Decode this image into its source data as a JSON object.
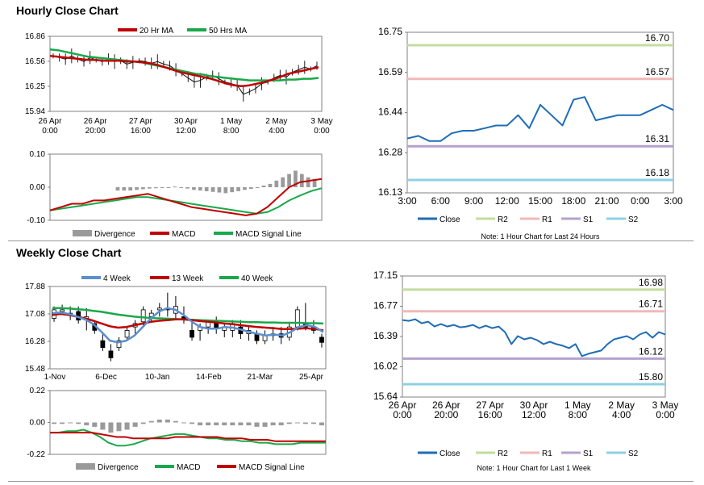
{
  "titles": {
    "hourly": "Hourly Close Chart",
    "weekly": "Weekly Close Chart"
  },
  "colors": {
    "close": "#1f6db5",
    "ma20": "#c00000",
    "ma50": "#1aa84a",
    "r2": "#c4dca0",
    "r1": "#f2b8b8",
    "s1": "#b4a2cc",
    "s2": "#8ed0e4",
    "wk4": "#5b8fd0",
    "wk13": "#c00000",
    "wk40": "#1aa84a",
    "divergence": "#9a9a9a",
    "macd_red": "#c00000",
    "macd_green": "#1aa84a",
    "candle_black": "#000000",
    "candle_white": "#ffffff"
  },
  "chart_data": [
    {
      "id": "hourly_price",
      "type": "candlestick",
      "title": "Hourly Close Chart",
      "legend": [
        "20 Hr MA",
        "50 Hrs MA"
      ],
      "yticks": [
        "16.86",
        "16.56",
        "16.25",
        "15.94"
      ],
      "ylim": [
        15.94,
        16.86
      ],
      "xticks": [
        [
          "26 Apr",
          "0:00"
        ],
        [
          "26 Apr",
          "20:00"
        ],
        [
          "27 Apr",
          "16:00"
        ],
        [
          "30 Apr",
          "12:00"
        ],
        [
          "1 May",
          "8:00"
        ],
        [
          "2 May",
          "4:00"
        ],
        [
          "3 May",
          "0:00"
        ]
      ],
      "close_path": [
        16.62,
        16.6,
        16.58,
        16.62,
        16.58,
        16.55,
        16.6,
        16.57,
        16.55,
        16.58,
        16.55,
        16.56,
        16.52,
        16.54,
        16.56,
        16.55,
        16.53,
        16.55,
        16.52,
        16.5,
        16.45,
        16.4,
        16.35,
        16.3,
        16.32,
        16.36,
        16.38,
        16.34,
        16.3,
        16.28,
        16.26,
        16.15,
        16.18,
        16.22,
        16.28,
        16.3,
        16.35,
        16.38,
        16.36,
        16.42,
        16.45,
        16.48,
        16.46,
        16.5
      ],
      "ma20_path": [
        16.62,
        16.61,
        16.6,
        16.59,
        16.58,
        16.57,
        16.57,
        16.56,
        16.56,
        16.56,
        16.55,
        16.55,
        16.54,
        16.53,
        16.51,
        16.48,
        16.45,
        16.42,
        16.4,
        16.38,
        16.36,
        16.34,
        16.31,
        16.28,
        16.26,
        16.25,
        16.26,
        16.28,
        16.3,
        16.33,
        16.36,
        16.4,
        16.42,
        16.44,
        16.46,
        16.48
      ],
      "ma50_path": [
        16.7,
        16.69,
        16.67,
        16.65,
        16.63,
        16.61,
        16.6,
        16.59,
        16.58,
        16.57,
        16.56,
        16.55,
        16.54,
        16.52,
        16.5,
        16.48,
        16.46,
        16.44,
        16.42,
        16.4,
        16.39,
        16.37,
        16.36,
        16.35,
        16.34,
        16.33,
        16.32,
        16.32,
        16.32,
        16.32,
        16.32,
        16.33,
        16.33,
        16.34,
        16.34,
        16.35
      ]
    },
    {
      "id": "hourly_macd",
      "type": "macd",
      "legend": [
        "Divergence",
        "MACD",
        "MACD Signal Line"
      ],
      "yticks": [
        "0.10",
        "0.00",
        "-0.10"
      ],
      "ylim": [
        -0.1,
        0.1
      ],
      "macd_path": [
        -0.07,
        -0.06,
        -0.05,
        -0.05,
        -0.04,
        -0.04,
        -0.035,
        -0.03,
        -0.025,
        -0.02,
        -0.03,
        -0.04,
        -0.05,
        -0.06,
        -0.065,
        -0.07,
        -0.075,
        -0.08,
        -0.085,
        -0.08,
        -0.06,
        -0.03,
        0.0,
        0.015,
        0.02,
        0.025
      ],
      "signal_path": [
        -0.07,
        -0.065,
        -0.06,
        -0.055,
        -0.05,
        -0.045,
        -0.04,
        -0.035,
        -0.03,
        -0.03,
        -0.035,
        -0.04,
        -0.045,
        -0.05,
        -0.055,
        -0.06,
        -0.065,
        -0.07,
        -0.075,
        -0.08,
        -0.075,
        -0.06,
        -0.04,
        -0.025,
        -0.012,
        -0.003
      ],
      "divergence": [
        -0.01,
        -0.01,
        -0.01,
        -0.008,
        -0.006,
        -0.004,
        -0.003,
        -0.002,
        0.0,
        0.002,
        0.0,
        -0.004,
        -0.008,
        -0.01,
        -0.012,
        -0.014,
        -0.016,
        -0.018,
        -0.015,
        -0.012,
        -0.008,
        -0.005,
        0.0,
        0.005,
        0.01,
        0.02,
        0.03,
        0.04,
        0.05,
        0.04,
        0.03,
        0.025
      ]
    },
    {
      "id": "hourly_24h",
      "type": "line",
      "note": "Note: 1 Hour Chart for Last 24 Hours",
      "legend": [
        "Close",
        "R2",
        "R1",
        "S1",
        "S2"
      ],
      "yticks": [
        "16.75",
        "16.59",
        "16.44",
        "16.28",
        "16.13"
      ],
      "ylim": [
        16.13,
        16.75
      ],
      "xticks": [
        "3:00",
        "6:00",
        "9:00",
        "12:00",
        "15:00",
        "18:00",
        "21:00",
        "0:00",
        "3:00"
      ],
      "levels": {
        "r2": "16.70",
        "r1": "16.57",
        "s1": "16.31",
        "s2": "16.18"
      },
      "close": [
        16.34,
        16.35,
        16.33,
        16.33,
        16.36,
        16.37,
        16.37,
        16.38,
        16.39,
        16.39,
        16.43,
        16.38,
        16.47,
        16.43,
        16.39,
        16.49,
        16.5,
        16.41,
        16.42,
        16.43,
        16.43,
        16.43,
        16.45,
        16.47,
        16.45
      ]
    },
    {
      "id": "weekly_price",
      "type": "candlestick",
      "title": "Weekly Close Chart",
      "legend": [
        "4 Week",
        "13 Week",
        "40 Week"
      ],
      "yticks": [
        "17.88",
        "17.08",
        "16.28",
        "15.48"
      ],
      "ylim": [
        15.48,
        17.88
      ],
      "xticks": [
        "1-Nov",
        "6-Dec",
        "10-Jan",
        "14-Feb",
        "21-Mar",
        "25-Apr"
      ],
      "candles": [
        [
          16.95,
          17.3,
          17.2,
          16.85
        ],
        [
          17.15,
          17.35,
          17.2,
          17.05
        ],
        [
          17.05,
          17.3,
          17.1,
          16.9
        ],
        [
          17.15,
          17.3,
          16.9,
          16.8
        ],
        [
          16.9,
          17.25,
          17.0,
          16.6
        ],
        [
          16.8,
          16.9,
          16.6,
          16.5
        ],
        [
          16.3,
          16.5,
          16.1,
          16.0
        ],
        [
          16.0,
          16.2,
          15.8,
          15.7
        ],
        [
          16.1,
          16.4,
          16.3,
          16.0
        ],
        [
          16.4,
          16.7,
          16.6,
          16.3
        ],
        [
          16.7,
          16.9,
          16.8,
          16.5
        ],
        [
          16.85,
          17.3,
          17.2,
          16.7
        ],
        [
          17.0,
          17.2,
          17.1,
          16.85
        ],
        [
          17.2,
          17.4,
          17.25,
          17.0
        ],
        [
          17.25,
          17.7,
          17.2,
          17.0
        ],
        [
          17.1,
          17.6,
          17.3,
          16.9
        ],
        [
          17.0,
          17.3,
          16.9,
          16.8
        ],
        [
          16.6,
          16.9,
          16.4,
          16.3
        ],
        [
          16.6,
          16.8,
          16.7,
          16.3
        ],
        [
          16.7,
          16.9,
          16.9,
          16.5
        ],
        [
          16.8,
          17.0,
          16.65,
          16.5
        ],
        [
          16.6,
          16.8,
          16.7,
          16.4
        ],
        [
          16.6,
          16.9,
          16.8,
          16.4
        ],
        [
          16.7,
          16.9,
          16.5,
          16.35
        ],
        [
          16.5,
          16.7,
          16.6,
          16.3
        ],
        [
          16.5,
          16.6,
          16.3,
          16.2
        ],
        [
          16.3,
          16.6,
          16.45,
          16.2
        ],
        [
          16.45,
          16.7,
          16.5,
          16.3
        ],
        [
          16.5,
          16.7,
          16.4,
          16.2
        ],
        [
          16.4,
          16.8,
          16.7,
          16.3
        ],
        [
          16.7,
          17.3,
          17.2,
          16.6
        ],
        [
          16.8,
          17.4,
          16.7,
          16.6
        ],
        [
          16.7,
          16.9,
          16.6,
          16.5
        ],
        [
          16.4,
          16.5,
          16.25,
          16.1
        ]
      ],
      "wk4_path": [
        17.1,
        17.12,
        17.08,
        17.0,
        16.92,
        16.78,
        16.55,
        16.3,
        16.25,
        16.3,
        16.45,
        16.7,
        16.95,
        17.15,
        17.25,
        17.2,
        17.05,
        16.85,
        16.7,
        16.65,
        16.65,
        16.7,
        16.68,
        16.62,
        16.55,
        16.5,
        16.45,
        16.48,
        16.45,
        16.55,
        16.7,
        16.75,
        16.7,
        16.55
      ],
      "wk13_path": [
        17.05,
        17.08,
        17.05,
        17.0,
        16.95,
        16.88,
        16.8,
        16.72,
        16.68,
        16.7,
        16.75,
        16.8,
        16.85,
        16.88,
        16.9,
        16.92,
        16.92,
        16.9,
        16.87,
        16.85,
        16.83,
        16.8,
        16.78,
        16.75,
        16.72,
        16.7,
        16.68,
        16.66,
        16.64,
        16.64,
        16.65,
        16.66,
        16.64,
        16.6
      ],
      "wk40_path": [
        17.25,
        17.25,
        17.24,
        17.22,
        17.2,
        17.17,
        17.14,
        17.1,
        17.06,
        17.03,
        17.0,
        16.98,
        16.96,
        16.95,
        16.94,
        16.93,
        16.92,
        16.91,
        16.9,
        16.89,
        16.88,
        16.87,
        16.86,
        16.85,
        16.84,
        16.84,
        16.83,
        16.83,
        16.82,
        16.82,
        16.82,
        16.81,
        16.81,
        16.8
      ]
    },
    {
      "id": "weekly_macd",
      "type": "macd",
      "legend": [
        "Divergence",
        "MACD",
        "MACD Signal Line"
      ],
      "yticks": [
        "0.22",
        "0.00",
        "-0.22"
      ],
      "ylim": [
        -0.22,
        0.22
      ],
      "macd_path": [
        -0.07,
        -0.07,
        -0.06,
        -0.06,
        -0.05,
        -0.07,
        -0.1,
        -0.14,
        -0.16,
        -0.16,
        -0.15,
        -0.13,
        -0.11,
        -0.1,
        -0.09,
        -0.08,
        -0.08,
        -0.09,
        -0.1,
        -0.11,
        -0.11,
        -0.12,
        -0.12,
        -0.13,
        -0.13,
        -0.14,
        -0.14,
        -0.15,
        -0.15,
        -0.15,
        -0.14,
        -0.14,
        -0.14,
        -0.14
      ],
      "signal_path": [
        -0.07,
        -0.07,
        -0.07,
        -0.07,
        -0.07,
        -0.07,
        -0.08,
        -0.09,
        -0.1,
        -0.1,
        -0.11,
        -0.11,
        -0.11,
        -0.11,
        -0.11,
        -0.1,
        -0.1,
        -0.1,
        -0.1,
        -0.1,
        -0.1,
        -0.11,
        -0.11,
        -0.11,
        -0.12,
        -0.12,
        -0.12,
        -0.13,
        -0.13,
        -0.13,
        -0.13,
        -0.13,
        -0.13,
        -0.13
      ],
      "divergence": [
        -0.01,
        -0.01,
        0.0,
        -0.01,
        -0.02,
        -0.03,
        -0.05,
        -0.07,
        -0.06,
        -0.05,
        -0.03,
        -0.01,
        0.01,
        0.02,
        0.02,
        0.01,
        0.0,
        -0.01,
        -0.02,
        -0.02,
        -0.02,
        -0.02,
        -0.02,
        -0.02,
        -0.02,
        -0.03,
        -0.03,
        -0.02,
        -0.02,
        -0.01,
        0.0,
        -0.01,
        -0.01,
        -0.02
      ]
    },
    {
      "id": "weekly_1w",
      "type": "line",
      "note": "Note: 1 Hour Chart for Last 1 Week",
      "legend": [
        "Close",
        "R2",
        "R1",
        "S1",
        "S2"
      ],
      "yticks": [
        "17.15",
        "16.77",
        "16.39",
        "16.02",
        "15.64"
      ],
      "ylim": [
        15.64,
        17.15
      ],
      "xticks": [
        [
          "26 Apr",
          "0:00"
        ],
        [
          "26 Apr",
          "20:00"
        ],
        [
          "27 Apr",
          "16:00"
        ],
        [
          "30 Apr",
          "12:00"
        ],
        [
          "1 May",
          "8:00"
        ],
        [
          "2 May",
          "4:00"
        ],
        [
          "3 May",
          "0:00"
        ]
      ],
      "levels": {
        "r2": "16.98",
        "r1": "16.71",
        "s1": "16.12",
        "s2": "15.80"
      },
      "close": [
        16.6,
        16.59,
        16.61,
        16.56,
        16.58,
        16.52,
        16.55,
        16.52,
        16.54,
        16.51,
        16.52,
        16.54,
        16.5,
        16.53,
        16.5,
        16.52,
        16.45,
        16.3,
        16.4,
        16.36,
        16.38,
        16.35,
        16.3,
        16.33,
        16.3,
        16.28,
        16.25,
        16.3,
        16.15,
        16.18,
        16.2,
        16.22,
        16.3,
        16.36,
        16.38,
        16.4,
        16.36,
        16.42,
        16.45,
        16.38,
        16.45,
        16.42
      ]
    }
  ]
}
